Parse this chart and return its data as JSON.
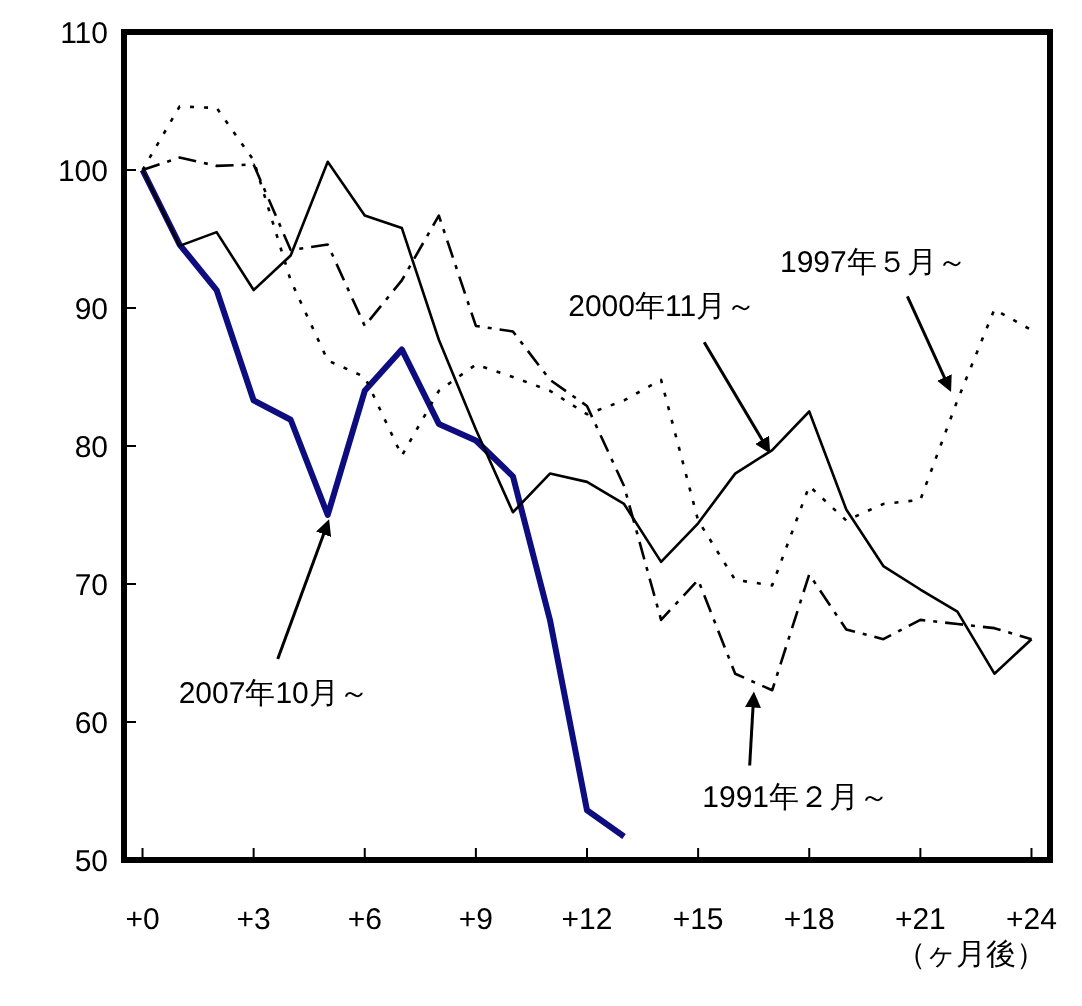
{
  "chart_data": {
    "type": "line",
    "xlabel": "（ヶ月後）",
    "x": [
      0,
      1,
      2,
      3,
      4,
      5,
      6,
      7,
      8,
      9,
      10,
      11,
      12,
      13,
      14,
      15,
      16,
      17,
      18,
      19,
      20,
      21,
      22,
      23,
      24
    ],
    "xlim": [
      -0.5,
      24.5
    ],
    "xticks": [
      {
        "value": 0,
        "label": "+0"
      },
      {
        "value": 3,
        "label": "+3"
      },
      {
        "value": 6,
        "label": "+6"
      },
      {
        "value": 9,
        "label": "+9"
      },
      {
        "value": 12,
        "label": "+12"
      },
      {
        "value": 15,
        "label": "+15"
      },
      {
        "value": 18,
        "label": "+18"
      },
      {
        "value": 21,
        "label": "+21"
      },
      {
        "value": 24,
        "label": "+24"
      }
    ],
    "ylim": [
      50,
      110
    ],
    "yticks": [
      50,
      60,
      70,
      80,
      90,
      100,
      110
    ],
    "grid": false,
    "annotations": [
      {
        "text": "2007年10月～",
        "x": 5,
        "y": 75
      },
      {
        "text": "2000年11月～",
        "x": 17,
        "y": 79.7
      },
      {
        "text": "1997年５月～",
        "x": 22,
        "y": 83.3
      },
      {
        "text": "1991年２月～",
        "x": 16.5,
        "y": 62.5
      }
    ],
    "marker": "none",
    "series": [
      {
        "color": "#0d0d80",
        "line_style": "solid",
        "values": [
          100,
          94.6,
          91.3,
          83.3,
          81.9,
          75,
          84,
          87,
          81.6,
          80.4,
          77.8,
          67.4,
          53.6,
          51.7,
          null,
          null,
          null,
          null,
          null,
          null,
          null,
          null,
          null,
          null,
          null
        ]
      },
      {
        "color": "#000000",
        "line_style": "solid",
        "values": [
          100,
          94.5,
          95.5,
          91.3,
          93.8,
          100.6,
          96.7,
          95.8,
          87.7,
          81.2,
          75.2,
          78,
          77.4,
          75.8,
          71.6,
          74.4,
          78,
          79.7,
          82.5,
          75.4,
          71.3,
          69.6,
          68,
          63.5,
          66
        ]
      },
      {
        "color": "#000000",
        "line_style": "dotted",
        "values": [
          100,
          104.6,
          104.5,
          100.7,
          92,
          86.2,
          85,
          79.3,
          84,
          85.9,
          85,
          84,
          82.3,
          83.3,
          84.8,
          74.6,
          70.3,
          69.9,
          77.1,
          74.6,
          75.8,
          76.1,
          83.3,
          89.9,
          88.4
        ]
      },
      {
        "color": "#000000",
        "line_style": "dashed",
        "values": [
          100,
          100.9,
          100.3,
          100.4,
          94.2,
          94.6,
          88.7,
          92,
          96.7,
          88.7,
          88.3,
          84.8,
          82.9,
          77.1,
          67.4,
          70.3,
          63.5,
          62.3,
          70.7,
          66.7,
          66,
          67.4,
          67.1,
          66.8,
          66
        ]
      }
    ]
  }
}
